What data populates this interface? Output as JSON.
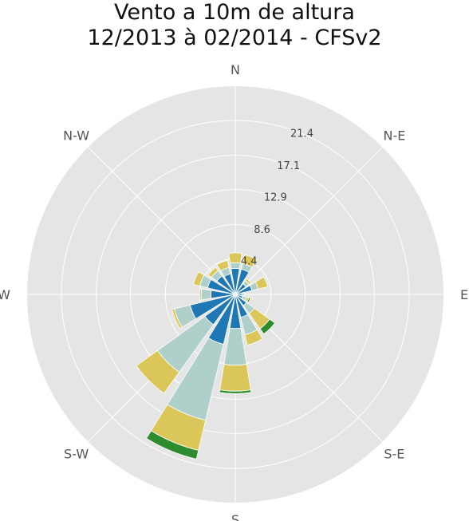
{
  "chart_data": {
    "type": "windrose",
    "title_lines": [
      "Vento a 10m de altura",
      "12/2013 à 02/2014 - CFSv2"
    ],
    "directions": [
      "N",
      "N-E",
      "E",
      "S-E",
      "S",
      "S-W",
      "W",
      "N-W"
    ],
    "radial_ticks": [
      "4.4",
      "8.6",
      "12.9",
      "17.1",
      "21.4"
    ],
    "rmax": 25.6,
    "speed_band_colors": [
      "#1f77b4",
      "#aecfca",
      "#dbc659",
      "#2e8b2e"
    ],
    "sectors": [
      {
        "angle": 0,
        "segments": [
          3.2,
          0.7,
          1.2,
          0.0
        ]
      },
      {
        "angle": 22.5,
        "segments": [
          3.2,
          0.7,
          1.1,
          0.0
        ]
      },
      {
        "angle": 45,
        "segments": [
          1.6,
          0.5,
          0.3,
          0.0
        ]
      },
      {
        "angle": 67.5,
        "segments": [
          2.1,
          0.8,
          1.2,
          0.0
        ]
      },
      {
        "angle": 90,
        "segments": [
          0.8,
          0.3,
          0.0,
          0.0
        ]
      },
      {
        "angle": 112.5,
        "segments": [
          0.9,
          0.5,
          0.3,
          0.2
        ]
      },
      {
        "angle": 135,
        "segments": [
          1.7,
          1.2,
          2.3,
          0.8
        ]
      },
      {
        "angle": 157.5,
        "segments": [
          2.9,
          2.2,
          1.3,
          0.0
        ]
      },
      {
        "angle": 180,
        "segments": [
          4.2,
          4.5,
          3.2,
          0.3
        ]
      },
      {
        "angle": 202.5,
        "segments": [
          6.3,
          9.6,
          3.8,
          1.1
        ]
      },
      {
        "angle": 225,
        "segments": [
          4.6,
          7.2,
          3.2,
          0.0
        ]
      },
      {
        "angle": 247.5,
        "segments": [
          5.7,
          2.0,
          0.3,
          0.0
        ]
      },
      {
        "angle": 270,
        "segments": [
          3.0,
          1.2,
          0.2,
          0.0
        ]
      },
      {
        "angle": 292.5,
        "segments": [
          3.5,
          1.0,
          0.8,
          0.0
        ]
      },
      {
        "angle": 315,
        "segments": [
          2.8,
          0.8,
          0.5,
          0.0
        ]
      },
      {
        "angle": 337.5,
        "segments": [
          2.6,
          0.8,
          0.9,
          0.0
        ]
      }
    ]
  }
}
